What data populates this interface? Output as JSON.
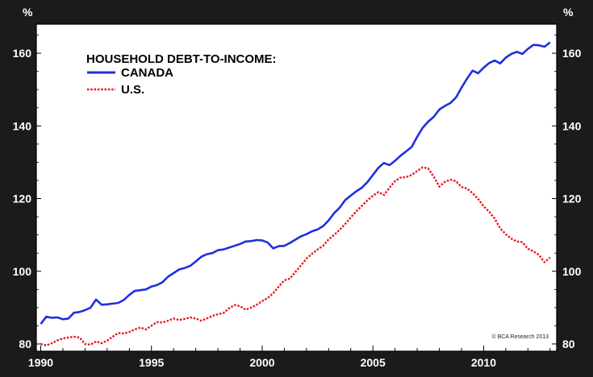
{
  "chart_data": {
    "type": "line",
    "title": "HOUSEHOLD DEBT-TO-INCOME:",
    "ylabel_left": "%",
    "ylabel_right": "%",
    "xlim": [
      1989.8,
      2013.3
    ],
    "ylim": [
      78,
      168
    ],
    "x_ticks": [
      1990,
      1995,
      2000,
      2005,
      2010
    ],
    "y_ticks": [
      80,
      100,
      120,
      140,
      160
    ],
    "grid": false,
    "legend_position": "top-left",
    "source_note": "© BCA Research 2013",
    "series": [
      {
        "name": "CANADA",
        "color": "#1f2fe0",
        "style": "solid",
        "points": [
          [
            1990.0,
            85.5
          ],
          [
            1990.25,
            87.5
          ],
          [
            1990.5,
            87.2
          ],
          [
            1990.75,
            87.3
          ],
          [
            1991.0,
            86.8
          ],
          [
            1991.25,
            87.0
          ],
          [
            1991.5,
            88.6
          ],
          [
            1991.75,
            88.8
          ],
          [
            1992.0,
            89.3
          ],
          [
            1992.25,
            90.0
          ],
          [
            1992.5,
            92.2
          ],
          [
            1992.75,
            90.8
          ],
          [
            1993.0,
            90.9
          ],
          [
            1993.5,
            91.3
          ],
          [
            1993.75,
            92.1
          ],
          [
            1994.0,
            93.5
          ],
          [
            1994.25,
            94.6
          ],
          [
            1994.5,
            94.8
          ],
          [
            1994.75,
            95.0
          ],
          [
            1995.0,
            95.8
          ],
          [
            1995.25,
            96.2
          ],
          [
            1995.5,
            97.0
          ],
          [
            1995.75,
            98.5
          ],
          [
            1996.0,
            99.5
          ],
          [
            1996.25,
            100.5
          ],
          [
            1996.5,
            100.9
          ],
          [
            1996.75,
            101.5
          ],
          [
            1997.0,
            102.7
          ],
          [
            1997.25,
            104.0
          ],
          [
            1997.5,
            104.7
          ],
          [
            1997.75,
            105.0
          ],
          [
            1998.0,
            105.8
          ],
          [
            1998.25,
            106.0
          ],
          [
            1998.5,
            106.5
          ],
          [
            1998.75,
            107.0
          ],
          [
            1999.0,
            107.5
          ],
          [
            1999.25,
            108.2
          ],
          [
            1999.5,
            108.3
          ],
          [
            1999.75,
            108.6
          ],
          [
            2000.0,
            108.5
          ],
          [
            2000.25,
            107.9
          ],
          [
            2000.5,
            106.3
          ],
          [
            2000.75,
            106.9
          ],
          [
            2001.0,
            107.0
          ],
          [
            2001.25,
            107.8
          ],
          [
            2001.5,
            108.7
          ],
          [
            2001.75,
            109.6
          ],
          [
            2002.0,
            110.2
          ],
          [
            2002.25,
            111.0
          ],
          [
            2002.5,
            111.5
          ],
          [
            2002.75,
            112.4
          ],
          [
            2003.0,
            114.0
          ],
          [
            2003.25,
            116.0
          ],
          [
            2003.5,
            117.5
          ],
          [
            2003.75,
            119.6
          ],
          [
            2004.0,
            120.8
          ],
          [
            2004.25,
            122.0
          ],
          [
            2004.5,
            123.0
          ],
          [
            2004.75,
            124.5
          ],
          [
            2005.0,
            126.5
          ],
          [
            2005.25,
            128.5
          ],
          [
            2005.5,
            129.8
          ],
          [
            2005.75,
            129.2
          ],
          [
            2006.0,
            130.4
          ],
          [
            2006.25,
            131.8
          ],
          [
            2006.5,
            133.0
          ],
          [
            2006.75,
            134.2
          ],
          [
            2007.0,
            137.0
          ],
          [
            2007.25,
            139.5
          ],
          [
            2007.5,
            141.2
          ],
          [
            2007.75,
            142.5
          ],
          [
            2008.0,
            144.5
          ],
          [
            2008.25,
            145.5
          ],
          [
            2008.5,
            146.3
          ],
          [
            2008.75,
            147.8
          ],
          [
            2009.0,
            150.5
          ],
          [
            2009.25,
            153.0
          ],
          [
            2009.5,
            155.2
          ],
          [
            2009.75,
            154.5
          ],
          [
            2010.0,
            156.0
          ],
          [
            2010.25,
            157.3
          ],
          [
            2010.5,
            158.0
          ],
          [
            2010.75,
            157.2
          ],
          [
            2011.0,
            158.8
          ],
          [
            2011.25,
            159.8
          ],
          [
            2011.5,
            160.4
          ],
          [
            2011.75,
            159.8
          ],
          [
            2012.0,
            161.2
          ],
          [
            2012.25,
            162.3
          ],
          [
            2012.5,
            162.2
          ],
          [
            2012.75,
            161.8
          ],
          [
            2013.0,
            163.0
          ]
        ]
      },
      {
        "name": "U.S.",
        "color": "#e8141c",
        "style": "dotted",
        "points": [
          [
            1990.0,
            80.0
          ],
          [
            1990.25,
            79.6
          ],
          [
            1990.5,
            80.2
          ],
          [
            1990.75,
            81.0
          ],
          [
            1991.0,
            81.5
          ],
          [
            1991.25,
            81.8
          ],
          [
            1991.5,
            82.0
          ],
          [
            1991.75,
            81.8
          ],
          [
            1992.0,
            80.0
          ],
          [
            1992.25,
            79.8
          ],
          [
            1992.5,
            80.7
          ],
          [
            1992.75,
            80.2
          ],
          [
            1993.0,
            80.9
          ],
          [
            1993.25,
            82.0
          ],
          [
            1993.5,
            83.0
          ],
          [
            1993.75,
            82.9
          ],
          [
            1994.0,
            83.3
          ],
          [
            1994.25,
            84.0
          ],
          [
            1994.5,
            84.5
          ],
          [
            1994.75,
            84.0
          ],
          [
            1995.0,
            85.0
          ],
          [
            1995.25,
            86.0
          ],
          [
            1995.5,
            85.9
          ],
          [
            1995.75,
            86.4
          ],
          [
            1996.0,
            87.0
          ],
          [
            1996.25,
            86.6
          ],
          [
            1996.5,
            86.9
          ],
          [
            1996.75,
            87.3
          ],
          [
            1997.0,
            87.0
          ],
          [
            1997.25,
            86.4
          ],
          [
            1997.5,
            87.0
          ],
          [
            1997.75,
            87.7
          ],
          [
            1998.0,
            88.2
          ],
          [
            1998.25,
            88.5
          ],
          [
            1998.5,
            89.8
          ],
          [
            1998.75,
            90.7
          ],
          [
            1999.0,
            90.4
          ],
          [
            1999.25,
            89.4
          ],
          [
            1999.5,
            90.0
          ],
          [
            1999.75,
            90.8
          ],
          [
            2000.0,
            91.8
          ],
          [
            2000.25,
            92.6
          ],
          [
            2000.5,
            94.0
          ],
          [
            2000.75,
            95.8
          ],
          [
            2001.0,
            97.5
          ],
          [
            2001.25,
            98.0
          ],
          [
            2001.5,
            99.8
          ],
          [
            2001.75,
            101.6
          ],
          [
            2002.0,
            103.5
          ],
          [
            2002.25,
            104.8
          ],
          [
            2002.5,
            106.0
          ],
          [
            2002.75,
            107.0
          ],
          [
            2003.0,
            108.8
          ],
          [
            2003.25,
            110.0
          ],
          [
            2003.5,
            111.4
          ],
          [
            2003.75,
            113.0
          ],
          [
            2004.0,
            114.8
          ],
          [
            2004.25,
            116.5
          ],
          [
            2004.5,
            118.0
          ],
          [
            2004.75,
            119.5
          ],
          [
            2005.0,
            120.8
          ],
          [
            2005.25,
            121.8
          ],
          [
            2005.5,
            121.0
          ],
          [
            2005.75,
            123.0
          ],
          [
            2006.0,
            124.8
          ],
          [
            2006.25,
            125.8
          ],
          [
            2006.5,
            125.9
          ],
          [
            2006.75,
            126.5
          ],
          [
            2007.0,
            127.6
          ],
          [
            2007.25,
            128.6
          ],
          [
            2007.5,
            128.3
          ],
          [
            2007.75,
            126.0
          ],
          [
            2008.0,
            123.3
          ],
          [
            2008.25,
            124.6
          ],
          [
            2008.5,
            125.2
          ],
          [
            2008.75,
            124.8
          ],
          [
            2009.0,
            123.2
          ],
          [
            2009.25,
            122.8
          ],
          [
            2009.5,
            121.5
          ],
          [
            2009.75,
            119.9
          ],
          [
            2010.0,
            117.9
          ],
          [
            2010.25,
            116.4
          ],
          [
            2010.5,
            114.5
          ],
          [
            2010.75,
            111.8
          ],
          [
            2011.0,
            110.2
          ],
          [
            2011.25,
            109.0
          ],
          [
            2011.5,
            108.2
          ],
          [
            2011.75,
            108.0
          ],
          [
            2012.0,
            106.2
          ],
          [
            2012.25,
            105.5
          ],
          [
            2012.5,
            104.5
          ],
          [
            2012.75,
            102.5
          ],
          [
            2013.0,
            103.8
          ]
        ]
      }
    ]
  }
}
